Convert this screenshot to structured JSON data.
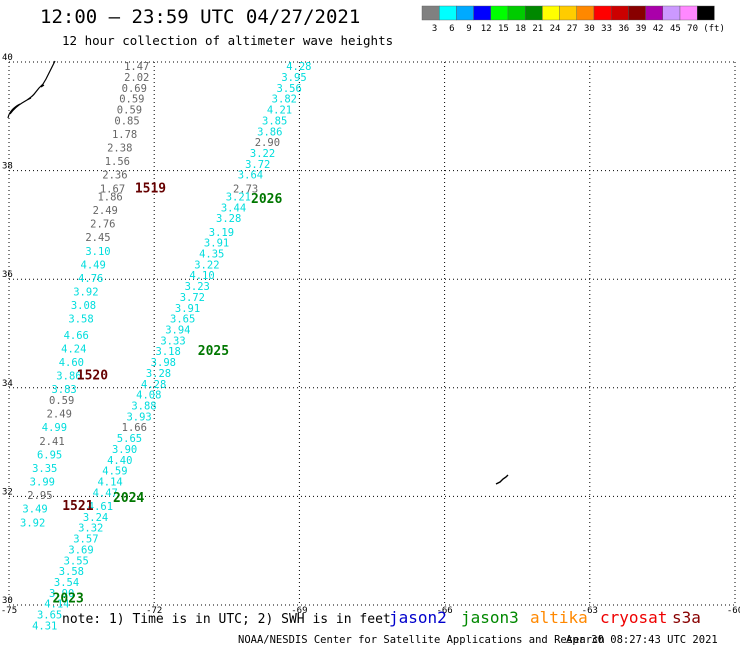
{
  "header": {
    "title": "12:00 – 23:59 UTC 04/27/2021",
    "subtitle": "12 hour collection of altimeter wave heights"
  },
  "legend": {
    "unit": "(ft)",
    "items": [
      {
        "label": "3",
        "color": "#808080"
      },
      {
        "label": "6",
        "color": "#00ffff"
      },
      {
        "label": "9",
        "color": "#00aaff"
      },
      {
        "label": "12",
        "color": "#0000ff"
      },
      {
        "label": "15",
        "color": "#00ff00"
      },
      {
        "label": "18",
        "color": "#00cc00"
      },
      {
        "label": "21",
        "color": "#008800"
      },
      {
        "label": "24",
        "color": "#ffff00"
      },
      {
        "label": "27",
        "color": "#ffcc00"
      },
      {
        "label": "30",
        "color": "#ff8800"
      },
      {
        "label": "33",
        "color": "#ff0000"
      },
      {
        "label": "36",
        "color": "#cc0000"
      },
      {
        "label": "39",
        "color": "#880000"
      },
      {
        "label": "42",
        "color": "#aa00aa"
      },
      {
        "label": "45",
        "color": "#cc99ff"
      },
      {
        "label": "70",
        "color": "#ff88ff"
      },
      {
        "label": "",
        "color": "#000000"
      }
    ]
  },
  "map": {
    "lon_ticks": [
      {
        "lon": -75,
        "label": "-75"
      },
      {
        "lon": -72,
        "label": "-72"
      },
      {
        "lon": -69,
        "label": "-69"
      },
      {
        "lon": -66,
        "label": "-66"
      },
      {
        "lon": -63,
        "label": "-63"
      },
      {
        "lon": -60,
        "label": "-60"
      }
    ],
    "lat_ticks": [
      {
        "lat": 40,
        "label": "40"
      },
      {
        "lat": 38,
        "label": "38"
      },
      {
        "lat": 36,
        "label": "36"
      },
      {
        "lat": 34,
        "label": "34"
      },
      {
        "lat": 32,
        "label": "32"
      },
      {
        "lat": 30,
        "label": "30"
      }
    ],
    "lon_range": [
      -75,
      -60
    ],
    "lat_range": [
      30,
      40
    ],
    "grid": "dotted",
    "colors": {
      "gray": "#666666",
      "cyan": "#00dddd",
      "pass_dark_red": "#660000",
      "pass_green": "#007700"
    },
    "pass_labels": [
      {
        "text": "1519",
        "lon": -72.4,
        "lat": 37.6,
        "color": "pass_dark_red"
      },
      {
        "text": "2026",
        "lon": -70.0,
        "lat": 37.4,
        "color": "pass_green"
      },
      {
        "text": "1520",
        "lon": -73.6,
        "lat": 34.15,
        "color": "pass_dark_red"
      },
      {
        "text": "2025",
        "lon": -71.1,
        "lat": 34.6,
        "color": "pass_green"
      },
      {
        "text": "2024",
        "lon": -72.85,
        "lat": 31.9,
        "color": "pass_green"
      },
      {
        "text": "1521",
        "lon": -73.9,
        "lat": 31.75,
        "color": "pass_dark_red"
      },
      {
        "text": "2023",
        "lon": -74.1,
        "lat": 30.05,
        "color": "pass_green"
      }
    ],
    "tracks": [
      {
        "name": "track-1519",
        "color": "gray",
        "points": [
          {
            "lon": -72.1,
            "lat": 39.85,
            "v": "1.47"
          },
          {
            "lon": -72.1,
            "lat": 39.65,
            "v": "2.02"
          },
          {
            "lon": -72.15,
            "lat": 39.45,
            "v": "0.69"
          },
          {
            "lon": -72.2,
            "lat": 39.25,
            "v": "0.59"
          },
          {
            "lon": -72.25,
            "lat": 39.05,
            "v": "0.59"
          },
          {
            "lon": -72.3,
            "lat": 38.85,
            "v": "0.85"
          },
          {
            "lon": -72.35,
            "lat": 38.6,
            "v": "1.78"
          },
          {
            "lon": -72.45,
            "lat": 38.35,
            "v": "2.38"
          },
          {
            "lon": -72.5,
            "lat": 38.1,
            "v": "1.56"
          },
          {
            "lon": -72.55,
            "lat": 37.85,
            "v": "2.36"
          },
          {
            "lon": -72.6,
            "lat": 37.6,
            "v": "1.67"
          },
          {
            "lon": -72.65,
            "lat": 37.45,
            "v": "1.86"
          },
          {
            "lon": -72.75,
            "lat": 37.2,
            "v": "2.49"
          },
          {
            "lon": -72.8,
            "lat": 36.95,
            "v": "2.76"
          },
          {
            "lon": -72.9,
            "lat": 36.7,
            "v": "2.45"
          },
          {
            "lon": -72.9,
            "lat": 36.45,
            "v": "3.10",
            "c": "cyan"
          },
          {
            "lon": -73.0,
            "lat": 36.2,
            "v": "4.49",
            "c": "cyan"
          },
          {
            "lon": -73.05,
            "lat": 35.95,
            "v": "4.76",
            "c": "cyan"
          },
          {
            "lon": -73.15,
            "lat": 35.7,
            "v": "3.92",
            "c": "cyan"
          },
          {
            "lon": -73.2,
            "lat": 35.45,
            "v": "3.08",
            "c": "cyan"
          },
          {
            "lon": -73.25,
            "lat": 35.2,
            "v": "3.58",
            "c": "cyan"
          },
          {
            "lon": -73.35,
            "lat": 34.9,
            "v": "4.66",
            "c": "cyan"
          },
          {
            "lon": -73.4,
            "lat": 34.65,
            "v": "4.24",
            "c": "cyan"
          },
          {
            "lon": -73.45,
            "lat": 34.4,
            "v": "4.60",
            "c": "cyan"
          },
          {
            "lon": -73.5,
            "lat": 34.15,
            "v": "3.86",
            "c": "cyan"
          },
          {
            "lon": -73.6,
            "lat": 33.9,
            "v": "3.83",
            "c": "cyan"
          },
          {
            "lon": -73.65,
            "lat": 33.7,
            "v": "0.59"
          },
          {
            "lon": -73.7,
            "lat": 33.45,
            "v": "2.49"
          },
          {
            "lon": -73.8,
            "lat": 33.2,
            "v": "4.99",
            "c": "cyan"
          },
          {
            "lon": -73.85,
            "lat": 32.95,
            "v": "2.41"
          },
          {
            "lon": -73.9,
            "lat": 32.7,
            "v": "6.95",
            "c": "cyan"
          },
          {
            "lon": -74.0,
            "lat": 32.45,
            "v": "3.35",
            "c": "cyan"
          },
          {
            "lon": -74.05,
            "lat": 32.2,
            "v": "3.99",
            "c": "cyan"
          },
          {
            "lon": -74.1,
            "lat": 31.95,
            "v": "2.95"
          },
          {
            "lon": -74.2,
            "lat": 31.7,
            "v": "3.49",
            "c": "cyan"
          },
          {
            "lon": -74.25,
            "lat": 31.45,
            "v": "3.92",
            "c": "cyan"
          }
        ]
      },
      {
        "name": "track-2026",
        "color": "cyan",
        "points": [
          {
            "lon": -68.75,
            "lat": 39.85,
            "v": "4.28"
          },
          {
            "lon": -68.85,
            "lat": 39.65,
            "v": "3.95"
          },
          {
            "lon": -68.95,
            "lat": 39.45,
            "v": "3.56"
          },
          {
            "lon": -69.05,
            "lat": 39.25,
            "v": "3.82"
          },
          {
            "lon": -69.15,
            "lat": 39.05,
            "v": "4.21"
          },
          {
            "lon": -69.25,
            "lat": 38.85,
            "v": "3.85"
          },
          {
            "lon": -69.35,
            "lat": 38.65,
            "v": "3.86"
          },
          {
            "lon": -69.4,
            "lat": 38.45,
            "v": "2.90",
            "c": "gray"
          },
          {
            "lon": -69.5,
            "lat": 38.25,
            "v": "3.22"
          },
          {
            "lon": -69.6,
            "lat": 38.05,
            "v": "3.72"
          },
          {
            "lon": -69.75,
            "lat": 37.85,
            "v": "3.64"
          },
          {
            "lon": -69.85,
            "lat": 37.6,
            "v": "2.73",
            "c": "gray"
          },
          {
            "lon": -70.0,
            "lat": 37.45,
            "v": "3.21"
          },
          {
            "lon": -70.1,
            "lat": 37.25,
            "v": "3.44"
          },
          {
            "lon": -70.2,
            "lat": 37.05,
            "v": "3.28"
          },
          {
            "lon": -70.35,
            "lat": 36.8,
            "v": "3.19"
          },
          {
            "lon": -70.45,
            "lat": 36.6,
            "v": "3.91"
          },
          {
            "lon": -70.55,
            "lat": 36.4,
            "v": "4.35"
          },
          {
            "lon": -70.65,
            "lat": 36.2,
            "v": "3.22"
          },
          {
            "lon": -70.75,
            "lat": 36.0,
            "v": "4.10"
          },
          {
            "lon": -70.85,
            "lat": 35.8,
            "v": "3.23"
          },
          {
            "lon": -70.95,
            "lat": 35.6,
            "v": "3.72"
          },
          {
            "lon": -71.05,
            "lat": 35.4,
            "v": "3.91"
          },
          {
            "lon": -71.15,
            "lat": 35.2,
            "v": "3.65"
          },
          {
            "lon": -71.25,
            "lat": 35.0,
            "v": "3.94"
          },
          {
            "lon": -71.35,
            "lat": 34.8,
            "v": "3.33"
          },
          {
            "lon": -71.45,
            "lat": 34.6,
            "v": "3.18"
          },
          {
            "lon": -71.55,
            "lat": 34.4,
            "v": "3.98"
          },
          {
            "lon": -71.65,
            "lat": 34.2,
            "v": "3.28"
          },
          {
            "lon": -71.75,
            "lat": 34.0,
            "v": "4.28"
          },
          {
            "lon": -71.85,
            "lat": 33.8,
            "v": "4.08"
          },
          {
            "lon": -71.95,
            "lat": 33.6,
            "v": "3.88"
          },
          {
            "lon": -72.05,
            "lat": 33.4,
            "v": "3.93"
          },
          {
            "lon": -72.15,
            "lat": 33.2,
            "v": "1.66",
            "c": "gray"
          },
          {
            "lon": -72.25,
            "lat": 33.0,
            "v": "5.65"
          },
          {
            "lon": -72.35,
            "lat": 32.8,
            "v": "3.90"
          },
          {
            "lon": -72.45,
            "lat": 32.6,
            "v": "4.40"
          },
          {
            "lon": -72.55,
            "lat": 32.4,
            "v": "4.59"
          },
          {
            "lon": -72.65,
            "lat": 32.2,
            "v": "4.14"
          },
          {
            "lon": -72.75,
            "lat": 32.0,
            "v": "4.47"
          },
          {
            "lon": -72.85,
            "lat": 31.75,
            "v": "4.61"
          },
          {
            "lon": -72.95,
            "lat": 31.55,
            "v": "3.24"
          },
          {
            "lon": -73.05,
            "lat": 31.35,
            "v": "3.32"
          },
          {
            "lon": -73.15,
            "lat": 31.15,
            "v": "3.57"
          },
          {
            "lon": -73.25,
            "lat": 30.95,
            "v": "3.69"
          },
          {
            "lon": -73.35,
            "lat": 30.75,
            "v": "3.55"
          },
          {
            "lon": -73.45,
            "lat": 30.55,
            "v": "3.58"
          },
          {
            "lon": -73.55,
            "lat": 30.35,
            "v": "3.54"
          },
          {
            "lon": -73.65,
            "lat": 30.15,
            "v": "3.90"
          },
          {
            "lon": -73.75,
            "lat": 29.95,
            "v": "4.14"
          },
          {
            "lon": -73.9,
            "lat": 29.75,
            "v": "3.65"
          },
          {
            "lon": -74.0,
            "lat": 29.55,
            "v": "4.31"
          }
        ]
      }
    ]
  },
  "footer": {
    "note": "note: 1) Time is in UTC; 2) SWH is in feet",
    "satellites": [
      {
        "name": "jason2",
        "color": "#0000cc"
      },
      {
        "name": "jason3",
        "color": "#008800"
      },
      {
        "name": "altika",
        "color": "#ff8800"
      },
      {
        "name": "cryosat",
        "color": "#ee0000"
      },
      {
        "name": "s3a",
        "color": "#880000"
      }
    ],
    "credit": "NOAA/NESDIS Center for Satellite Applications and Research",
    "generated": "Apr 30 08:27:43 UTC 2021"
  }
}
